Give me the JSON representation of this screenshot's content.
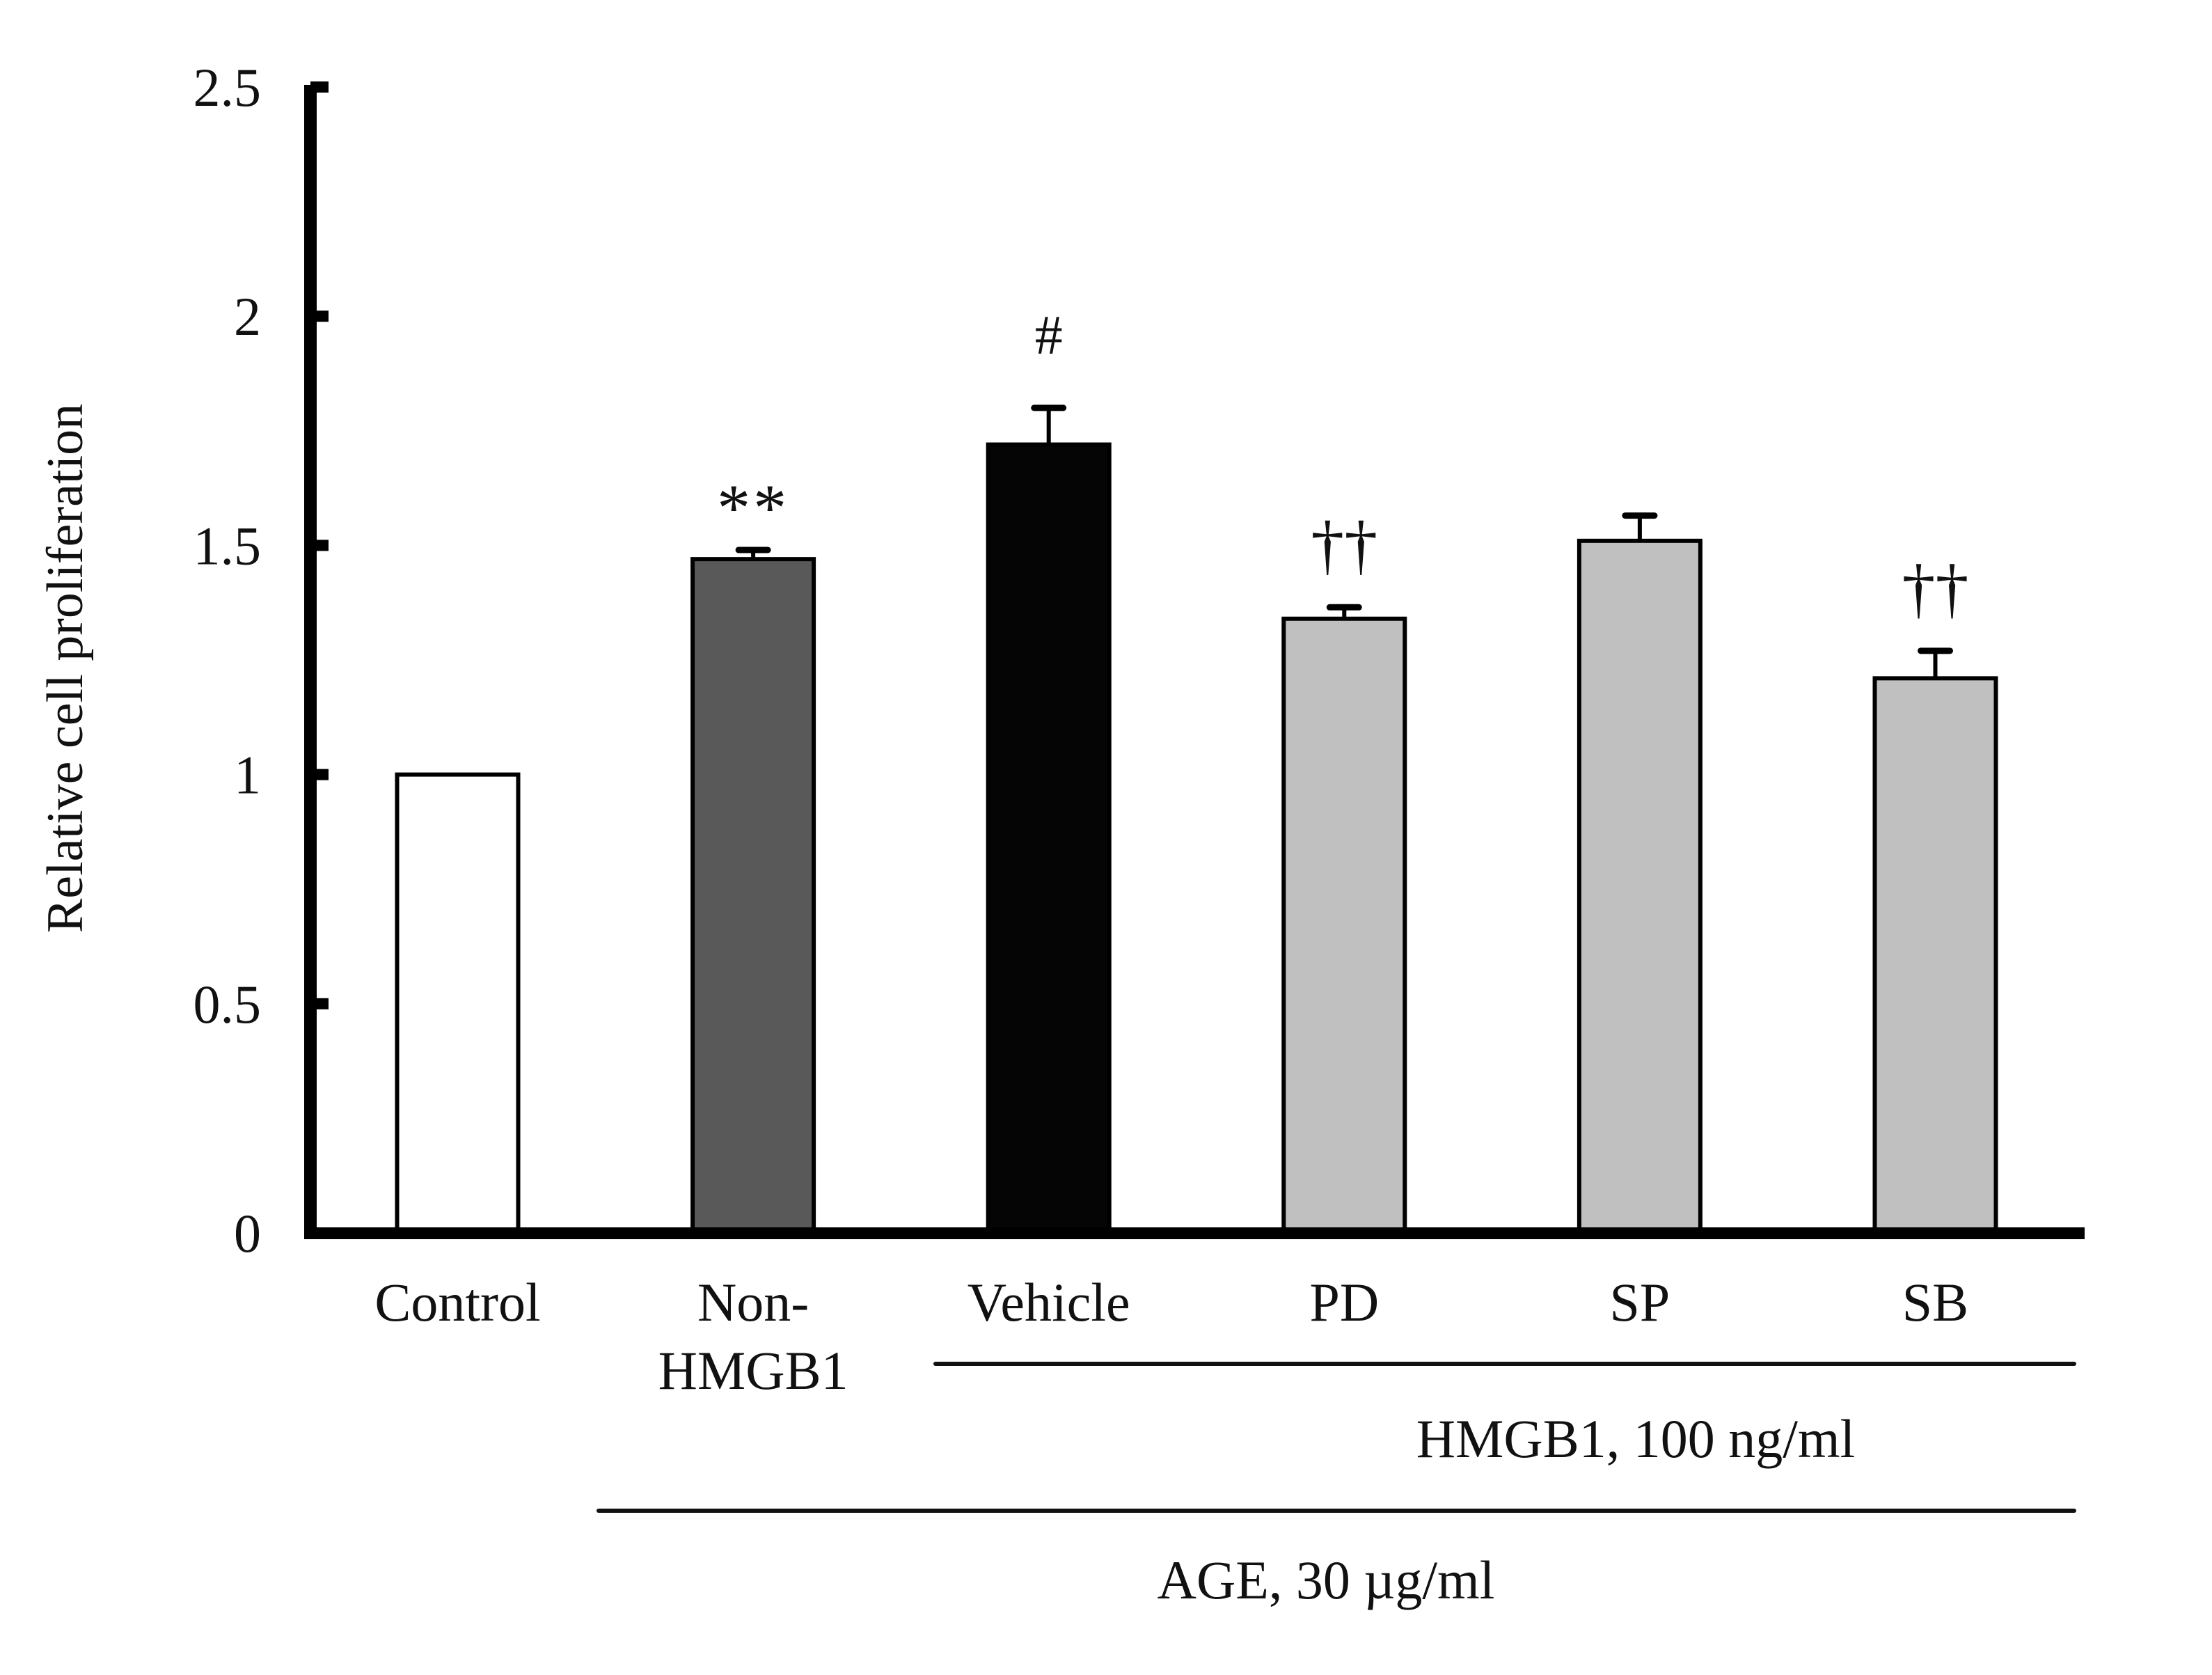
{
  "chart_data": {
    "type": "bar",
    "title": "",
    "xlabel": "",
    "ylabel": "Relative cell proliferation",
    "ylim": [
      0,
      2.5
    ],
    "yticks": [
      0,
      0.5,
      1,
      1.5,
      2,
      2.5
    ],
    "ytick_labels": [
      "0",
      "0.5",
      "1",
      "1.5",
      "2",
      "2.5"
    ],
    "grid": false,
    "categories": [
      {
        "lines": [
          "Control"
        ]
      },
      {
        "lines": [
          "Non-",
          "HMGB1"
        ]
      },
      {
        "lines": [
          "Vehicle"
        ]
      },
      {
        "lines": [
          "PD"
        ]
      },
      {
        "lines": [
          "SP"
        ]
      },
      {
        "lines": [
          "SB"
        ]
      }
    ],
    "values": [
      1.0,
      1.47,
      1.72,
      1.34,
      1.51,
      1.21
    ],
    "errors": [
      0,
      0.02,
      0.08,
      0.025,
      0.055,
      0.06
    ],
    "annotations": [
      "",
      "**",
      "#",
      "††",
      "",
      "††"
    ],
    "colors": [
      "#ffffff",
      "#595959",
      "#050505",
      "#c0c0c0",
      "#c0c0c0",
      "#c0c0c0"
    ],
    "groups": [
      {
        "label": "HMGB1, 100 ng/ml",
        "from_category": 2,
        "to_category": 5
      },
      {
        "label": "AGE, 30 µg/ml",
        "from_category": 1,
        "to_category": 5
      }
    ]
  }
}
